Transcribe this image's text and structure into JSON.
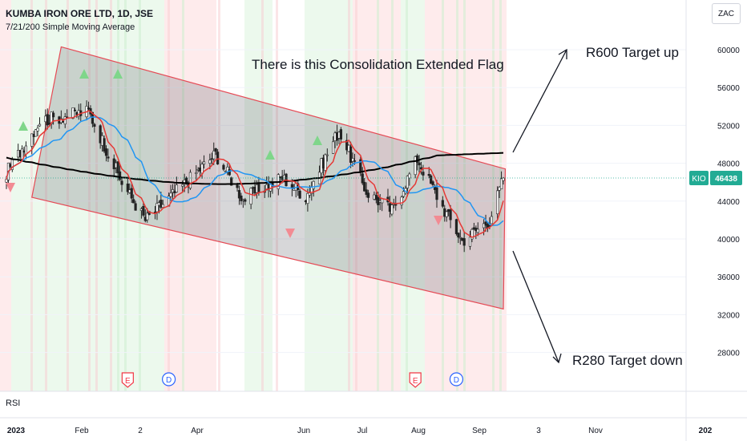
{
  "header": {
    "title": "KUMBA IRON ORE LTD, 1D, JSE",
    "indicator": "7/21/200 Simple Moving Average",
    "currency_button": "ZAC"
  },
  "annotations": {
    "flag": "There is this Consolidation Extended Flag",
    "target_up": "R600 Target up",
    "target_down": "R280 Target down"
  },
  "lower_pane": {
    "label": "RSI"
  },
  "price_label": {
    "symbol": "KIO",
    "price": "46438",
    "color": "#22ab94"
  },
  "colors": {
    "bull": "#22ab94",
    "bear": "#f23645",
    "sma7": "#e53935",
    "sma21": "#2196f3",
    "sma200": "#000000",
    "channel": "#e64a55",
    "grid": "#f0f3fa"
  },
  "event_markers": [
    {
      "type": "earnings",
      "label": "E",
      "date": "2023-03-06"
    },
    {
      "type": "dividend",
      "label": "D",
      "date": "2023-03-27"
    },
    {
      "type": "earnings",
      "label": "E",
      "date": "2023-07-31"
    },
    {
      "type": "dividend",
      "label": "D",
      "date": "2023-08-21"
    }
  ],
  "chart_data": {
    "type": "candlestick",
    "title": "KUMBA IRON ORE LTD, 1D, JSE",
    "y_ticks": [
      60000,
      56000,
      52000,
      48000,
      44000,
      40000,
      36000,
      32000,
      28000
    ],
    "x_tick_labels": [
      "2023",
      "Feb",
      "2",
      "Apr",
      "Jun",
      "Jul",
      "Aug",
      "Sep",
      "3",
      "Nov",
      "202"
    ],
    "ylim": [
      25700,
      64300
    ],
    "last_price": 46438,
    "moving_averages": [
      "SMA 7",
      "SMA 21",
      "SMA 200"
    ],
    "channel": {
      "upper": [
        {
          "date": "2023-01-31",
          "price": 60300
        },
        {
          "date": "2023-09-15",
          "price": 47400
        }
      ],
      "lower": [
        {
          "date": "2023-01-16",
          "price": 44400
        },
        {
          "date": "2023-09-14",
          "price": 32600
        }
      ]
    },
    "key_points": [
      {
        "date": "2023-01-03",
        "close": 47000
      },
      {
        "date": "2023-01-20",
        "close": 52500
      },
      {
        "date": "2023-02-14",
        "close": 53500
      },
      {
        "date": "2023-03-03",
        "close": 46000
      },
      {
        "date": "2023-03-15",
        "close": 42000
      },
      {
        "date": "2023-04-06",
        "close": 46200
      },
      {
        "date": "2023-04-20",
        "close": 49000
      },
      {
        "date": "2023-05-04",
        "close": 44200
      },
      {
        "date": "2023-05-24",
        "close": 46500
      },
      {
        "date": "2023-06-05",
        "close": 44500
      },
      {
        "date": "2023-06-22",
        "close": 51500
      },
      {
        "date": "2023-07-06",
        "close": 45000
      },
      {
        "date": "2023-07-19",
        "close": 43000
      },
      {
        "date": "2023-08-01",
        "close": 48500
      },
      {
        "date": "2023-08-15",
        "close": 43000
      },
      {
        "date": "2023-08-24",
        "close": 39800
      },
      {
        "date": "2023-09-07",
        "close": 42000
      },
      {
        "date": "2023-09-14",
        "close": 46438
      }
    ]
  }
}
